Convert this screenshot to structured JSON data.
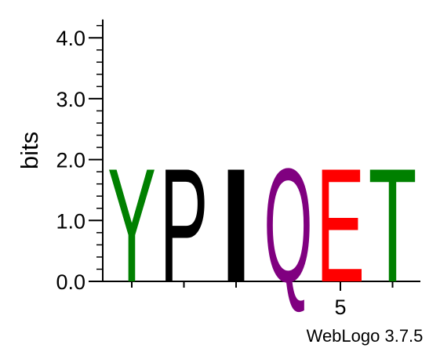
{
  "chart_data": {
    "type": "sequence-logo",
    "ylabel": "bits",
    "ylim": [
      0,
      4.3
    ],
    "y_ticks": [
      "0.0",
      "1.0",
      "2.0",
      "3.0",
      "4.0"
    ],
    "x_tick_labels": [
      {
        "position": 5,
        "label": "5"
      }
    ],
    "positions": [
      {
        "position": 1,
        "letter": "Y",
        "bits": 1.92,
        "color": "#008000"
      },
      {
        "position": 2,
        "letter": "P",
        "bits": 1.92,
        "color": "#000000"
      },
      {
        "position": 3,
        "letter": "I",
        "bits": 1.92,
        "color": "#000000"
      },
      {
        "position": 4,
        "letter": "Q",
        "bits": 1.92,
        "color": "#800080"
      },
      {
        "position": 5,
        "letter": "E",
        "bits": 1.92,
        "color": "#ff0000"
      },
      {
        "position": 6,
        "letter": "T",
        "bits": 1.92,
        "color": "#008000"
      }
    ]
  },
  "footer": "WebLogo 3.7.5"
}
